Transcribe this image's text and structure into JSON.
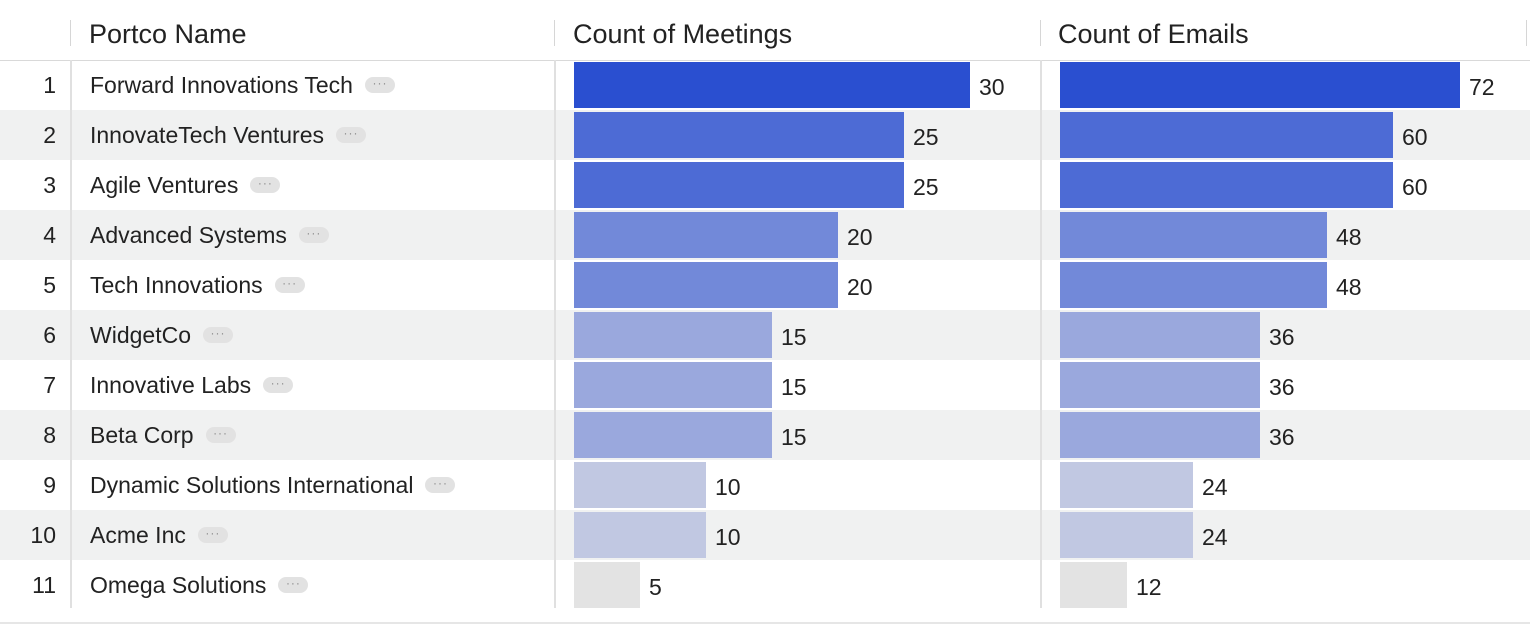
{
  "columns": {
    "name": "Portco Name",
    "meetings": "Count of Meetings",
    "emails": "Count of Emails"
  },
  "row_menu_glyph": "···",
  "colors": {
    "tier1": "#2a4fd0",
    "tier2": "#4d6bd5",
    "tier3": "#7289d9",
    "tier4": "#9aa8dd",
    "tier5": "#c1c8e2",
    "tier6": "#e3e3e3"
  },
  "rows": [
    {
      "index": "1",
      "name": "Forward Innovations Tech",
      "meetings": 30,
      "emails": 72
    },
    {
      "index": "2",
      "name": "InnovateTech Ventures",
      "meetings": 25,
      "emails": 60
    },
    {
      "index": "3",
      "name": "Agile Ventures",
      "meetings": 25,
      "emails": 60
    },
    {
      "index": "4",
      "name": "Advanced Systems",
      "meetings": 20,
      "emails": 48
    },
    {
      "index": "5",
      "name": "Tech Innovations",
      "meetings": 20,
      "emails": 48
    },
    {
      "index": "6",
      "name": "WidgetCo",
      "meetings": 15,
      "emails": 36
    },
    {
      "index": "7",
      "name": "Innovative Labs",
      "meetings": 15,
      "emails": 36
    },
    {
      "index": "8",
      "name": "Beta Corp",
      "meetings": 15,
      "emails": 36
    },
    {
      "index": "9",
      "name": "Dynamic Solutions International",
      "meetings": 10,
      "emails": 24
    },
    {
      "index": "10",
      "name": "Acme Inc",
      "meetings": 10,
      "emails": 24
    },
    {
      "index": "11",
      "name": "Omega Solutions",
      "meetings": 5,
      "emails": 12
    }
  ]
}
